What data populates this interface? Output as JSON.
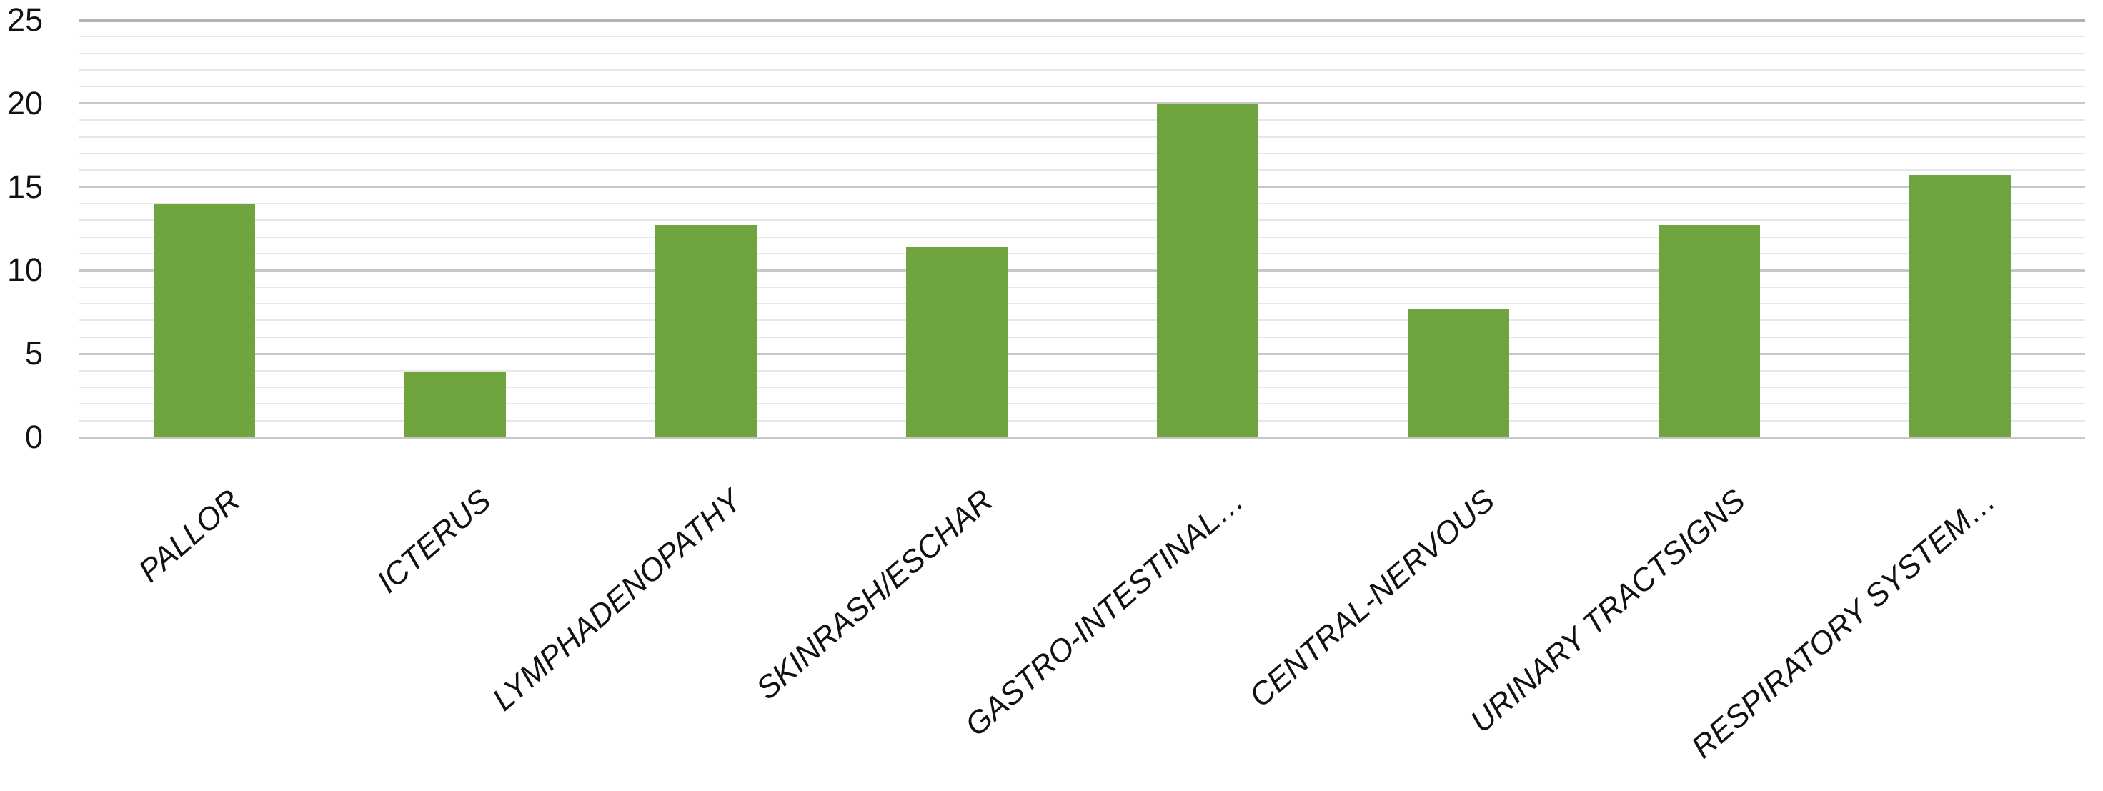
{
  "chart_data": {
    "type": "bar",
    "title": "",
    "xlabel": "",
    "ylabel": "",
    "categories": [
      "PALLOR",
      "ICTERUS",
      "LYMPHADENOPATHY",
      "SKINRASH/ESCHAR",
      "GASTRO-INTESTINAL…",
      "CENTRAL-NERVOUS",
      "URINARY TRACTSIGNS",
      "RESPIRATORY SYSTEM…"
    ],
    "values": [
      14,
      3.9,
      12.7,
      11.4,
      20,
      7.7,
      12.7,
      15.7
    ],
    "ylim": [
      0,
      25
    ],
    "y_ticks": [
      0,
      5,
      10,
      15,
      20,
      25
    ],
    "minor_grid_step": 1,
    "grid": "on",
    "legend": "none",
    "colors": {
      "bar": "#6FA43E",
      "grid_minor": "#e7e7e7",
      "grid_major": "#c7c7c7",
      "grid_top_border": "#b3b3b3",
      "text": "#111111",
      "background": "#ffffff"
    }
  }
}
